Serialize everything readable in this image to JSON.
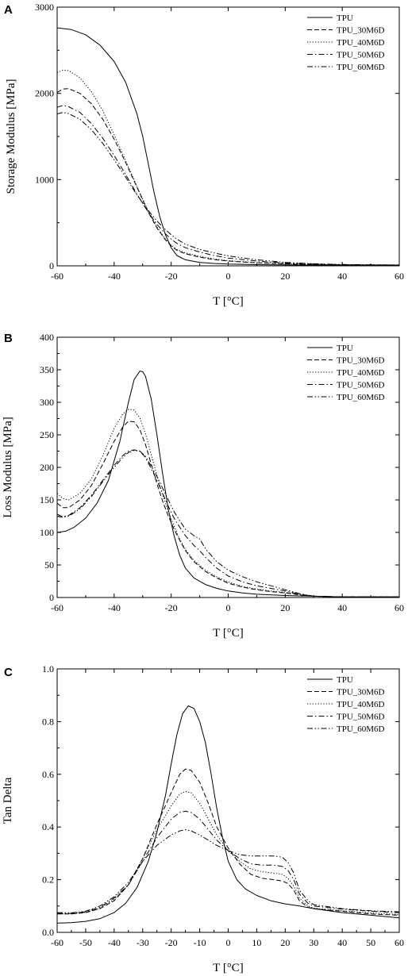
{
  "chart_data": [
    {
      "panel": "A",
      "type": "line",
      "title": "",
      "xlabel": "T [°C]",
      "ylabel": "Storage Modulus [MPa]",
      "xlim": [
        -60,
        60
      ],
      "ylim": [
        0,
        3000
      ],
      "xticks": [
        -60,
        -40,
        -20,
        0,
        20,
        40,
        60
      ],
      "yticks": [
        0,
        1000,
        2000,
        3000
      ],
      "legend": "top-right",
      "grid": false,
      "series": [
        {
          "name": "TPU",
          "dash": "solid",
          "x": [
            -60,
            -55,
            -50,
            -45,
            -40,
            -36,
            -32,
            -30,
            -28,
            -26,
            -24,
            -22,
            -20,
            -18,
            -15,
            -10,
            -5,
            0,
            10,
            20,
            30,
            40,
            50,
            60
          ],
          "y": [
            2760,
            2740,
            2680,
            2560,
            2370,
            2130,
            1760,
            1500,
            1180,
            850,
            570,
            360,
            210,
            120,
            70,
            40,
            28,
            20,
            14,
            10,
            8,
            6,
            5,
            5
          ]
        },
        {
          "name": "TPU_30M6D",
          "dash": "dash",
          "x": [
            -60,
            -58,
            -56,
            -52,
            -48,
            -44,
            -40,
            -36,
            -32,
            -28,
            -25,
            -22,
            -20,
            -18,
            -15,
            -10,
            -5,
            0,
            10,
            20,
            30,
            40,
            50,
            60
          ],
          "y": [
            2010,
            2050,
            2055,
            2000,
            1880,
            1700,
            1470,
            1200,
            910,
            620,
            440,
            300,
            230,
            180,
            140,
            100,
            72,
            55,
            35,
            22,
            15,
            11,
            9,
            8
          ]
        },
        {
          "name": "TPU_40M6D",
          "dash": "dot",
          "x": [
            -60,
            -58,
            -56,
            -52,
            -48,
            -44,
            -40,
            -36,
            -32,
            -28,
            -25,
            -22,
            -20,
            -18,
            -15,
            -10,
            -5,
            0,
            10,
            20,
            30,
            40,
            50,
            60
          ],
          "y": [
            2240,
            2270,
            2265,
            2180,
            2020,
            1800,
            1520,
            1220,
            920,
            630,
            450,
            310,
            240,
            190,
            150,
            110,
            80,
            60,
            38,
            24,
            16,
            12,
            10,
            9
          ]
        },
        {
          "name": "TPU_50M6D",
          "dash": "dashdot",
          "x": [
            -60,
            -58,
            -56,
            -52,
            -48,
            -44,
            -40,
            -36,
            -32,
            -28,
            -25,
            -22,
            -20,
            -18,
            -15,
            -10,
            -5,
            0,
            10,
            20,
            30,
            40,
            50,
            60
          ],
          "y": [
            1840,
            1860,
            1845,
            1780,
            1650,
            1480,
            1280,
            1060,
            830,
            620,
            480,
            370,
            310,
            260,
            210,
            160,
            120,
            90,
            55,
            32,
            20,
            14,
            11,
            10
          ]
        },
        {
          "name": "TPU_60M6D",
          "dash": "dashdotdot",
          "x": [
            -60,
            -58,
            -56,
            -52,
            -48,
            -44,
            -40,
            -36,
            -32,
            -28,
            -25,
            -22,
            -20,
            -18,
            -15,
            -10,
            -5,
            0,
            10,
            20,
            30,
            40,
            50,
            60
          ],
          "y": [
            1760,
            1780,
            1765,
            1700,
            1580,
            1420,
            1230,
            1030,
            820,
            640,
            520,
            420,
            360,
            310,
            250,
            190,
            150,
            115,
            70,
            40,
            24,
            16,
            12,
            10
          ]
        }
      ]
    },
    {
      "panel": "B",
      "type": "line",
      "title": "",
      "xlabel": "T [°C]",
      "ylabel": "Loss Modulus [MPa]",
      "xlim": [
        -60,
        60
      ],
      "ylim": [
        0,
        400
      ],
      "xticks": [
        -60,
        -40,
        -20,
        0,
        20,
        40,
        60
      ],
      "yticks": [
        0,
        50,
        100,
        150,
        200,
        250,
        300,
        350,
        400
      ],
      "legend": "top-right",
      "grid": false,
      "series": [
        {
          "name": "TPU",
          "dash": "solid",
          "x": [
            -60,
            -57,
            -54,
            -50,
            -46,
            -42,
            -38,
            -35,
            -33,
            -31,
            -30,
            -29,
            -27,
            -25,
            -23,
            -21,
            -19,
            -17,
            -15,
            -12,
            -8,
            -4,
            0,
            5,
            10,
            20,
            30,
            40,
            50,
            60
          ],
          "y": [
            100,
            102,
            108,
            122,
            145,
            180,
            240,
            300,
            335,
            348,
            347,
            340,
            305,
            250,
            190,
            135,
            95,
            65,
            45,
            30,
            20,
            14,
            10,
            7,
            5,
            3,
            2,
            1,
            1,
            1
          ]
        },
        {
          "name": "TPU_30M6D",
          "dash": "dash",
          "x": [
            -60,
            -58,
            -56,
            -52,
            -48,
            -44,
            -40,
            -37,
            -35,
            -33,
            -31,
            -29,
            -27,
            -25,
            -23,
            -21,
            -19,
            -17,
            -15,
            -12,
            -8,
            -4,
            0,
            5,
            10,
            15,
            20,
            25,
            30,
            40,
            50,
            60
          ],
          "y": [
            145,
            138,
            138,
            150,
            172,
            205,
            240,
            262,
            271,
            270,
            258,
            235,
            205,
            175,
            148,
            125,
            105,
            88,
            72,
            55,
            40,
            30,
            22,
            16,
            12,
            9,
            7,
            4,
            2,
            1,
            1,
            1
          ]
        },
        {
          "name": "TPU_40M6D",
          "dash": "dot",
          "x": [
            -60,
            -58,
            -56,
            -52,
            -48,
            -44,
            -40,
            -37,
            -35,
            -33,
            -31,
            -29,
            -27,
            -25,
            -23,
            -21,
            -19,
            -17,
            -15,
            -12,
            -8,
            -4,
            0,
            5,
            10,
            15,
            20,
            25,
            30,
            40,
            50,
            60
          ],
          "y": [
            160,
            152,
            150,
            160,
            182,
            218,
            260,
            282,
            289,
            288,
            276,
            252,
            220,
            188,
            158,
            132,
            110,
            90,
            74,
            57,
            42,
            32,
            24,
            17,
            13,
            10,
            8,
            5,
            2,
            1,
            1,
            1
          ]
        },
        {
          "name": "TPU_50M6D",
          "dash": "dashdot",
          "x": [
            -60,
            -58,
            -56,
            -52,
            -48,
            -44,
            -40,
            -37,
            -35,
            -33,
            -31,
            -29,
            -27,
            -25,
            -23,
            -21,
            -19,
            -17,
            -15,
            -12,
            -10,
            -8,
            -4,
            0,
            5,
            10,
            15,
            20,
            25,
            30,
            40,
            50,
            60
          ],
          "y": [
            128,
            124,
            126,
            138,
            157,
            180,
            203,
            218,
            225,
            227,
            225,
            215,
            198,
            180,
            160,
            140,
            122,
            108,
            95,
            80,
            72,
            62,
            45,
            33,
            24,
            18,
            14,
            10,
            5,
            2,
            1,
            1,
            1
          ]
        },
        {
          "name": "TPU_60M6D",
          "dash": "dashdotdot",
          "x": [
            -60,
            -58,
            -56,
            -52,
            -48,
            -44,
            -40,
            -37,
            -35,
            -33,
            -31,
            -29,
            -27,
            -25,
            -23,
            -21,
            -19,
            -17,
            -15,
            -12,
            -10,
            -8,
            -4,
            0,
            5,
            10,
            15,
            20,
            25,
            30,
            40,
            50,
            60
          ],
          "y": [
            125,
            123,
            125,
            136,
            155,
            178,
            200,
            215,
            223,
            226,
            225,
            217,
            202,
            186,
            168,
            150,
            132,
            118,
            105,
            95,
            90,
            75,
            55,
            42,
            32,
            24,
            18,
            12,
            6,
            2,
            1,
            1,
            1
          ]
        }
      ]
    },
    {
      "panel": "C",
      "type": "line",
      "title": "",
      "xlabel": "T [°C]",
      "ylabel": "Tan Delta",
      "xlim": [
        -60,
        60
      ],
      "ylim": [
        0.0,
        1.0
      ],
      "xticks": [
        -60,
        -50,
        -40,
        -30,
        -20,
        -10,
        0,
        10,
        20,
        30,
        40,
        50,
        60
      ],
      "yticks": [
        0.0,
        0.2,
        0.4,
        0.6,
        0.8,
        1.0
      ],
      "legend": "top-right",
      "grid": false,
      "series": [
        {
          "name": "TPU",
          "dash": "solid",
          "x": [
            -60,
            -55,
            -50,
            -45,
            -40,
            -36,
            -32,
            -28,
            -25,
            -22,
            -20,
            -18,
            -16,
            -14,
            -12,
            -10,
            -8,
            -6,
            -4,
            -2,
            0,
            3,
            6,
            10,
            15,
            20,
            25,
            30,
            40,
            50,
            60
          ],
          "y": [
            0.035,
            0.037,
            0.042,
            0.052,
            0.075,
            0.11,
            0.17,
            0.27,
            0.38,
            0.52,
            0.64,
            0.75,
            0.83,
            0.86,
            0.85,
            0.8,
            0.72,
            0.6,
            0.47,
            0.36,
            0.27,
            0.2,
            0.165,
            0.14,
            0.12,
            0.108,
            0.1,
            0.09,
            0.075,
            0.065,
            0.055
          ]
        },
        {
          "name": "TPU_30M6D",
          "dash": "dash",
          "x": [
            -60,
            -55,
            -50,
            -45,
            -40,
            -35,
            -30,
            -25,
            -20,
            -17,
            -15,
            -13,
            -10,
            -7,
            -4,
            0,
            4,
            8,
            12,
            16,
            19,
            21,
            23,
            25,
            28,
            30,
            40,
            50,
            60
          ],
          "y": [
            0.07,
            0.07,
            0.075,
            0.09,
            0.12,
            0.18,
            0.28,
            0.41,
            0.53,
            0.6,
            0.62,
            0.615,
            0.57,
            0.49,
            0.4,
            0.32,
            0.26,
            0.22,
            0.205,
            0.2,
            0.195,
            0.185,
            0.16,
            0.12,
            0.095,
            0.09,
            0.08,
            0.07,
            0.065
          ]
        },
        {
          "name": "TPU_40M6D",
          "dash": "dot",
          "x": [
            -60,
            -55,
            -50,
            -45,
            -40,
            -35,
            -30,
            -25,
            -20,
            -17,
            -15,
            -13,
            -10,
            -7,
            -4,
            0,
            4,
            8,
            12,
            16,
            19,
            21,
            23,
            25,
            28,
            30,
            40,
            50,
            60
          ],
          "y": [
            0.07,
            0.07,
            0.076,
            0.092,
            0.125,
            0.18,
            0.28,
            0.39,
            0.48,
            0.525,
            0.535,
            0.53,
            0.49,
            0.43,
            0.37,
            0.31,
            0.27,
            0.24,
            0.23,
            0.225,
            0.22,
            0.205,
            0.175,
            0.13,
            0.1,
            0.092,
            0.082,
            0.074,
            0.068
          ]
        },
        {
          "name": "TPU_50M6D",
          "dash": "dashdot",
          "x": [
            -60,
            -55,
            -50,
            -45,
            -40,
            -35,
            -30,
            -25,
            -20,
            -17,
            -15,
            -13,
            -10,
            -7,
            -4,
            0,
            4,
            8,
            12,
            16,
            19,
            21,
            23,
            25,
            28,
            30,
            40,
            50,
            60
          ],
          "y": [
            0.072,
            0.072,
            0.078,
            0.095,
            0.13,
            0.18,
            0.27,
            0.36,
            0.43,
            0.455,
            0.46,
            0.455,
            0.43,
            0.39,
            0.35,
            0.31,
            0.28,
            0.26,
            0.255,
            0.255,
            0.25,
            0.235,
            0.2,
            0.145,
            0.11,
            0.1,
            0.088,
            0.08,
            0.075
          ]
        },
        {
          "name": "TPU_60M6D",
          "dash": "dashdotdot",
          "x": [
            -60,
            -55,
            -50,
            -45,
            -40,
            -35,
            -30,
            -25,
            -20,
            -17,
            -15,
            -13,
            -10,
            -7,
            -4,
            0,
            4,
            8,
            12,
            16,
            19,
            21,
            23,
            25,
            28,
            30,
            40,
            50,
            60
          ],
          "y": [
            0.075,
            0.074,
            0.08,
            0.1,
            0.135,
            0.19,
            0.27,
            0.33,
            0.37,
            0.385,
            0.39,
            0.385,
            0.37,
            0.35,
            0.33,
            0.31,
            0.295,
            0.29,
            0.29,
            0.29,
            0.285,
            0.265,
            0.225,
            0.16,
            0.12,
            0.105,
            0.09,
            0.082,
            0.078
          ]
        }
      ]
    }
  ]
}
